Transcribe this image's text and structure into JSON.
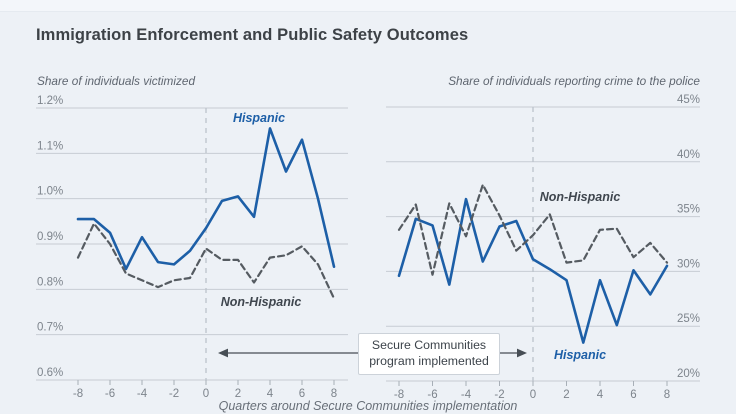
{
  "title": "Immigration Enforcement and Public Safety Outcomes",
  "x_axis_label": "Quarters around Secure Communities implementation",
  "annotation": {
    "line1": "Secure Communities",
    "line2": "program implemented"
  },
  "colors": {
    "hispanic_line": "#1d5fa7",
    "non_hispanic_line": "#555b61",
    "non_hispanic_label": "#3f464e",
    "grid": "#c7ccd3",
    "event_line": "#bcc3cb",
    "x_tick": "#a8afb7",
    "background": "#edf1f6",
    "tick_text": "#7d848c",
    "axis_title_text": "#5f6670",
    "title_text": "#3d4247",
    "arrow": "#474e55",
    "annotation_border": "#ccd2d9",
    "annotation_text": "#3c434a"
  },
  "chart_data": [
    {
      "id": "victimized",
      "type": "line",
      "title": "Share of individuals victimized",
      "x": [
        -8,
        -7,
        -6,
        -5,
        -4,
        -3,
        -2,
        -1,
        0,
        1,
        2,
        3,
        4,
        5,
        6,
        7,
        8
      ],
      "xticks": [
        -8,
        -6,
        -4,
        -2,
        0,
        2,
        4,
        6,
        8
      ],
      "ylim": [
        0.6,
        1.2
      ],
      "yticks": {
        "values": [
          1.2,
          1.1,
          1.0,
          0.9,
          0.8,
          0.7,
          0.6
        ],
        "labels": [
          "1.2%",
          "1.1%",
          "1.0%",
          "0.9%",
          "0.8%",
          "0.7%",
          "0.6%"
        ]
      },
      "event_x": 0,
      "series": [
        {
          "name": "Hispanic",
          "style": "solid",
          "values": [
            0.955,
            0.955,
            0.925,
            0.845,
            0.915,
            0.86,
            0.855,
            0.885,
            0.935,
            0.995,
            1.005,
            0.96,
            1.155,
            1.06,
            1.13,
            1.0,
            0.85
          ]
        },
        {
          "name": "Non-Hispanic",
          "style": "dashed",
          "values": [
            0.87,
            0.945,
            0.9,
            0.835,
            0.82,
            0.805,
            0.82,
            0.825,
            0.89,
            0.865,
            0.865,
            0.815,
            0.87,
            0.875,
            0.895,
            0.855,
            0.78
          ]
        }
      ]
    },
    {
      "id": "reporting",
      "type": "line",
      "title": "Share of individuals reporting crime to the police",
      "x": [
        -8,
        -7,
        -6,
        -5,
        -4,
        -3,
        -2,
        -1,
        0,
        1,
        2,
        3,
        4,
        5,
        6,
        7,
        8
      ],
      "xticks": [
        -8,
        -6,
        -4,
        -2,
        0,
        2,
        4,
        6,
        8
      ],
      "ylim": [
        20,
        45
      ],
      "yticks": {
        "values": [
          45,
          40,
          35,
          30,
          25,
          20
        ],
        "labels": [
          "45%",
          "40%",
          "35%",
          "30%",
          "25%",
          "20%"
        ]
      },
      "event_x": 0,
      "series": [
        {
          "name": "Hispanic",
          "style": "solid",
          "values": [
            29.6,
            34.8,
            34.2,
            28.8,
            36.6,
            30.9,
            34.1,
            34.6,
            31.1,
            30.2,
            29.2,
            23.5,
            29.2,
            25.1,
            30.1,
            27.9,
            30.5
          ]
        },
        {
          "name": "Non-Hispanic",
          "style": "dashed",
          "values": [
            33.8,
            36.1,
            29.7,
            36.2,
            33.2,
            37.9,
            35.1,
            31.9,
            33.3,
            35.2,
            30.8,
            31.0,
            33.8,
            33.9,
            31.3,
            32.6,
            30.8
          ]
        }
      ]
    }
  ]
}
